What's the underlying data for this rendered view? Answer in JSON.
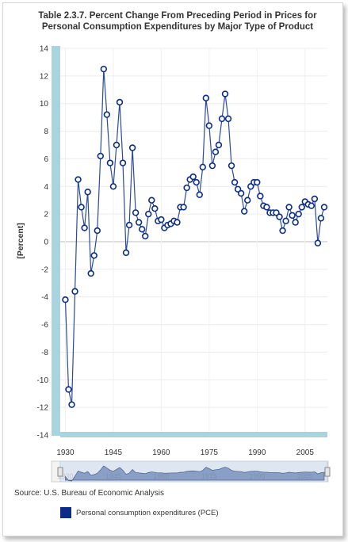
{
  "chart_data": {
    "type": "line",
    "title_line1": "Table 2.3.7. Percent Change From Preceding Period in Prices for",
    "title_line2": "Personal Consumption Expenditures by Major Type of Product",
    "ylabel": "[Percent]",
    "xlabel": "",
    "ylim": [
      -14,
      14
    ],
    "xlim": [
      1930,
      2012
    ],
    "y_ticks": [
      "14",
      "12",
      "10",
      "8",
      "6",
      "4",
      "2",
      "0",
      "-2",
      "-4",
      "-6",
      "-8",
      "-10",
      "-12",
      "-14"
    ],
    "x_ticks": [
      "1930",
      "1945",
      "1960",
      "1975",
      "1990",
      "2005"
    ],
    "grid": true,
    "legend_position": "bottom-left",
    "series": [
      {
        "name": "Personal consumption expenditures (PCE)",
        "color": "#2b4a9c",
        "x": [
          1930,
          1931,
          1932,
          1933,
          1934,
          1935,
          1936,
          1937,
          1938,
          1939,
          1940,
          1941,
          1942,
          1943,
          1944,
          1945,
          1946,
          1947,
          1948,
          1949,
          1950,
          1951,
          1952,
          1953,
          1954,
          1955,
          1956,
          1957,
          1958,
          1959,
          1960,
          1961,
          1962,
          1963,
          1964,
          1965,
          1966,
          1967,
          1968,
          1969,
          1970,
          1971,
          1972,
          1973,
          1974,
          1975,
          1976,
          1977,
          1978,
          1979,
          1980,
          1981,
          1982,
          1983,
          1984,
          1985,
          1986,
          1987,
          1988,
          1989,
          1990,
          1991,
          1992,
          1993,
          1994,
          1995,
          1996,
          1997,
          1998,
          1999,
          2000,
          2001,
          2002,
          2003,
          2004,
          2005,
          2006,
          2007,
          2008,
          2009,
          2010,
          2011
        ],
        "values": [
          -4.2,
          -10.7,
          -11.8,
          -3.6,
          4.5,
          2.5,
          1.0,
          3.6,
          -2.3,
          -1.0,
          0.8,
          6.2,
          12.5,
          9.2,
          5.7,
          4.0,
          7.0,
          10.1,
          5.7,
          -0.8,
          1.2,
          6.8,
          2.1,
          1.4,
          0.9,
          0.4,
          2.0,
          3.0,
          2.4,
          1.5,
          1.6,
          1.0,
          1.2,
          1.3,
          1.5,
          1.4,
          2.5,
          2.5,
          3.9,
          4.5,
          4.7,
          4.3,
          3.4,
          5.4,
          10.4,
          8.4,
          5.5,
          6.5,
          7.0,
          8.9,
          10.7,
          8.9,
          5.5,
          4.3,
          3.8,
          3.5,
          2.2,
          3.0,
          4.0,
          4.3,
          4.3,
          3.3,
          2.6,
          2.5,
          2.1,
          2.1,
          2.1,
          1.8,
          0.8,
          1.5,
          2.5,
          1.9,
          1.4,
          2.0,
          2.5,
          2.9,
          2.7,
          2.6,
          3.1,
          -0.1,
          1.7,
          2.5
        ]
      }
    ]
  },
  "source_text": "Source: U.S. Bureau of Economic Analysis",
  "legend_label": "Personal consumption expenditures (PCE)"
}
